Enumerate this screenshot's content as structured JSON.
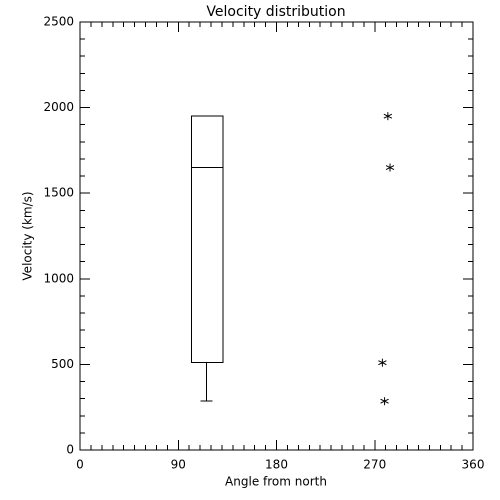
{
  "chart_data": {
    "type": "box",
    "title": "Velocity distribution",
    "x_label": "Angle from north",
    "y_label": "Velocity (km/s)",
    "xlim": [
      0,
      360
    ],
    "xticks": [
      0,
      90,
      180,
      270,
      360
    ],
    "ylim": [
      0,
      2500
    ],
    "yticks": [
      0,
      500,
      1000,
      1500,
      2000,
      2500
    ],
    "xminorticks": [
      10,
      20,
      30,
      40,
      50,
      60,
      70,
      80,
      100,
      110,
      120,
      130,
      140,
      150,
      160,
      170,
      190,
      200,
      210,
      220,
      230,
      240,
      250,
      260,
      280,
      290,
      300,
      310,
      320,
      330,
      340,
      350
    ],
    "yminorticks": [
      100,
      200,
      300,
      400,
      600,
      700,
      800,
      900,
      1100,
      1200,
      1300,
      1400,
      1600,
      1700,
      1800,
      1900,
      2100,
      2200,
      2300,
      2400
    ],
    "box": {
      "x": 116,
      "x_left": 102,
      "x_right": 131,
      "whisker_low": 285,
      "q1": 510,
      "median": 1650,
      "q3": 1950
    },
    "points": {
      "x": [
        282,
        284,
        277,
        279
      ],
      "y": [
        1950,
        1650,
        510,
        285
      ]
    },
    "color": "#000000"
  }
}
